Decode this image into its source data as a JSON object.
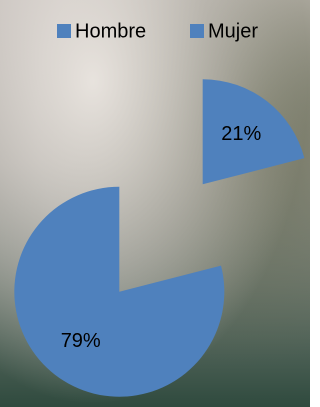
{
  "chart_data": {
    "type": "pie",
    "categories": [
      "Hombre",
      "Mujer"
    ],
    "values": [
      21,
      79
    ],
    "value_labels": [
      "21%",
      "79%"
    ],
    "colors": [
      "#4f81bd",
      "#4f81bd"
    ],
    "legend": "top"
  }
}
